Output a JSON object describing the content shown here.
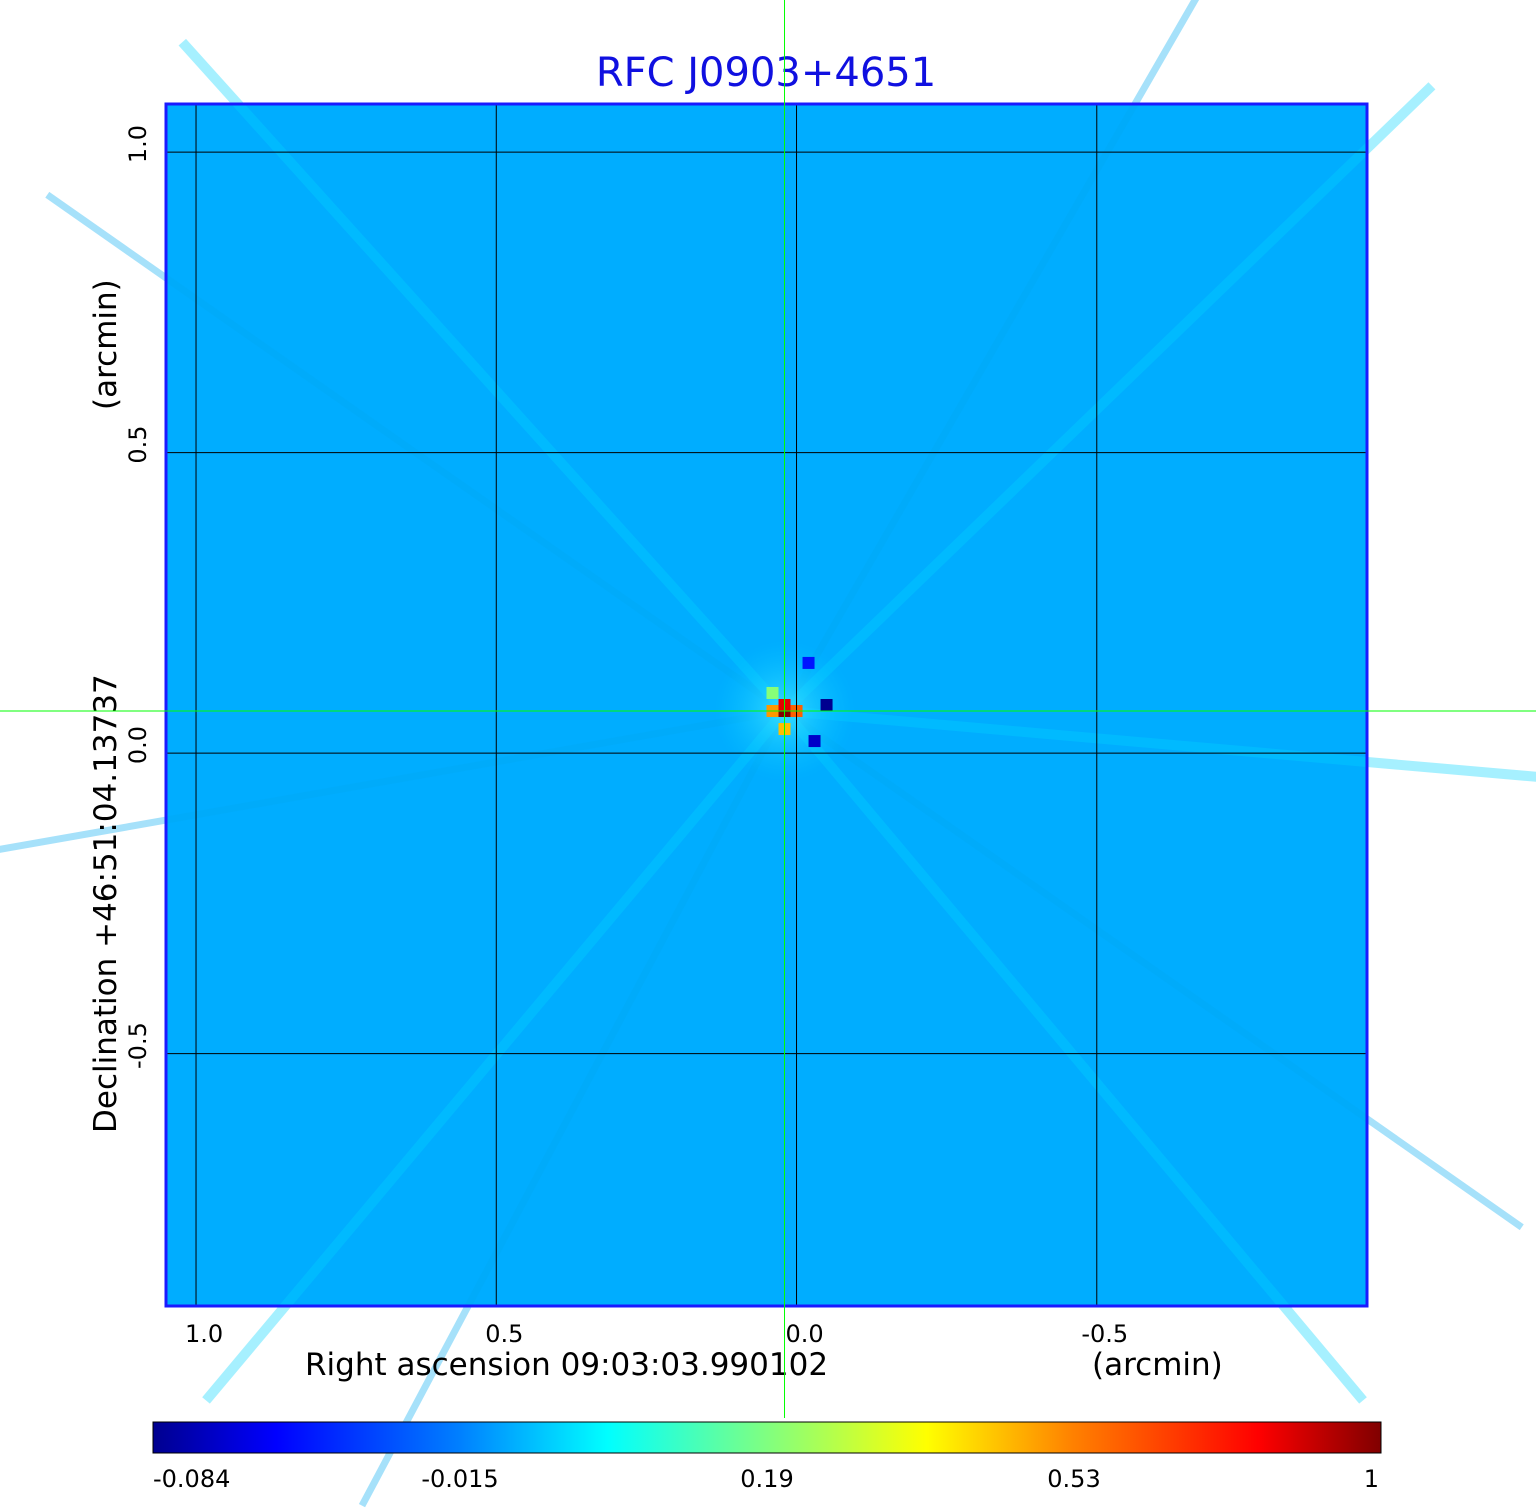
{
  "chart_data": {
    "type": "heatmap",
    "title": "RFC J0903+4651",
    "title_color": "#1010e0",
    "xlabel_left": "Right ascension  09:03:03.990102",
    "xlabel_right": "(arcmin)",
    "ylabel_left": "Declination  +46:51:04.13737",
    "ylabel_right": "(arcmin)",
    "x_axis": {
      "range": [
        1.05,
        -0.95
      ],
      "direction": "decreasing",
      "ticks": [
        1.0,
        0.5,
        0.0,
        -0.5
      ],
      "tick_labels": [
        "1.0",
        "0.5",
        "0.0",
        "-0.5"
      ]
    },
    "y_axis": {
      "range": [
        -0.92,
        1.08
      ],
      "ticks": [
        1.0,
        0.5,
        0.0,
        -0.5
      ],
      "tick_labels": [
        "1.0",
        "0.5",
        "0.0",
        "-0.5"
      ]
    },
    "grid": true,
    "grid_color": "#000000",
    "frame_color": "#1a1aff",
    "crosshair": {
      "x": 0.02,
      "y": 0.07,
      "color": "#00ff00"
    },
    "background_value": 0.02,
    "source_peak": {
      "x": 0.02,
      "y": 0.07,
      "value": 1.0
    },
    "features": [
      {
        "x": 0.02,
        "y": 0.07,
        "value": 1.0
      },
      {
        "x": 0.02,
        "y": 0.08,
        "value": 0.85
      },
      {
        "x": 0.0,
        "y": 0.07,
        "value": 0.6
      },
      {
        "x": 0.04,
        "y": 0.07,
        "value": 0.5
      },
      {
        "x": 0.02,
        "y": 0.04,
        "value": 0.45
      },
      {
        "x": 0.04,
        "y": 0.1,
        "value": 0.2
      },
      {
        "x": -0.05,
        "y": 0.08,
        "value": -0.084
      },
      {
        "x": -0.03,
        "y": 0.02,
        "value": -0.07
      },
      {
        "x": -0.02,
        "y": 0.15,
        "value": -0.05
      }
    ],
    "colorbar": {
      "position": "bottom",
      "tick_values": [
        -0.084,
        -0.015,
        0.19,
        0.53,
        1
      ],
      "tick_labels": [
        "-0.084",
        "-0.015",
        "0.19",
        "0.53",
        "1"
      ],
      "colormap": "jet"
    }
  }
}
